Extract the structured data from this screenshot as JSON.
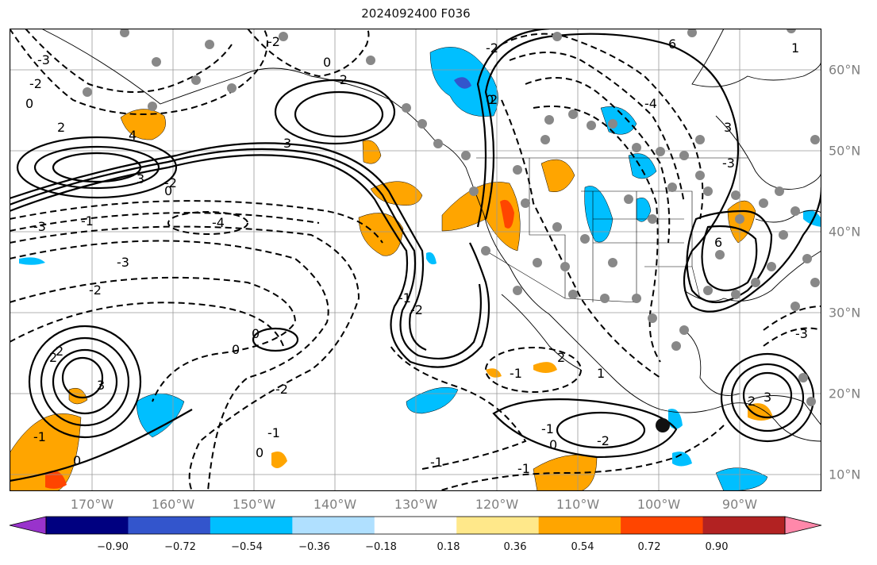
{
  "title": "2024092400 F036",
  "lat_labels": [
    "60°N",
    "50°N",
    "40°N",
    "30°N",
    "20°N",
    "10°N"
  ],
  "lon_labels": [
    "170°W",
    "160°W",
    "150°W",
    "140°W",
    "130°W",
    "120°W",
    "110°W",
    "100°W",
    "90°W"
  ],
  "contour_labels": [
    "-3",
    "-2",
    "0",
    "2",
    "4",
    "3",
    "-3",
    "-2",
    "-1",
    "-4",
    "-3",
    "-2",
    "0",
    "-2",
    "0",
    "3",
    "-2",
    "2",
    "-1",
    "0",
    "0",
    "-2",
    "-1",
    "0",
    "0",
    "-1",
    "-2",
    "2",
    "0",
    "6",
    "-4",
    "3",
    "6",
    "-1",
    "2",
    "3",
    "2",
    "-2",
    "-3",
    "0",
    "-1",
    "1",
    "3",
    "-1",
    "1",
    "2",
    "-1",
    "-2",
    "-3"
  ],
  "colorbar": {
    "ticks": [
      "−0.90",
      "−0.72",
      "−0.54",
      "−0.36",
      "−0.18",
      "0.18",
      "0.36",
      "0.54",
      "0.72",
      "0.90"
    ],
    "colors": [
      "#9933cc",
      "#000080",
      "#3355cc",
      "#00bfff",
      "#b0e0ff",
      "#ffffff",
      "#ffe88a",
      "#ffa500",
      "#ff4500",
      "#b22222",
      "#ff88aa"
    ]
  }
}
